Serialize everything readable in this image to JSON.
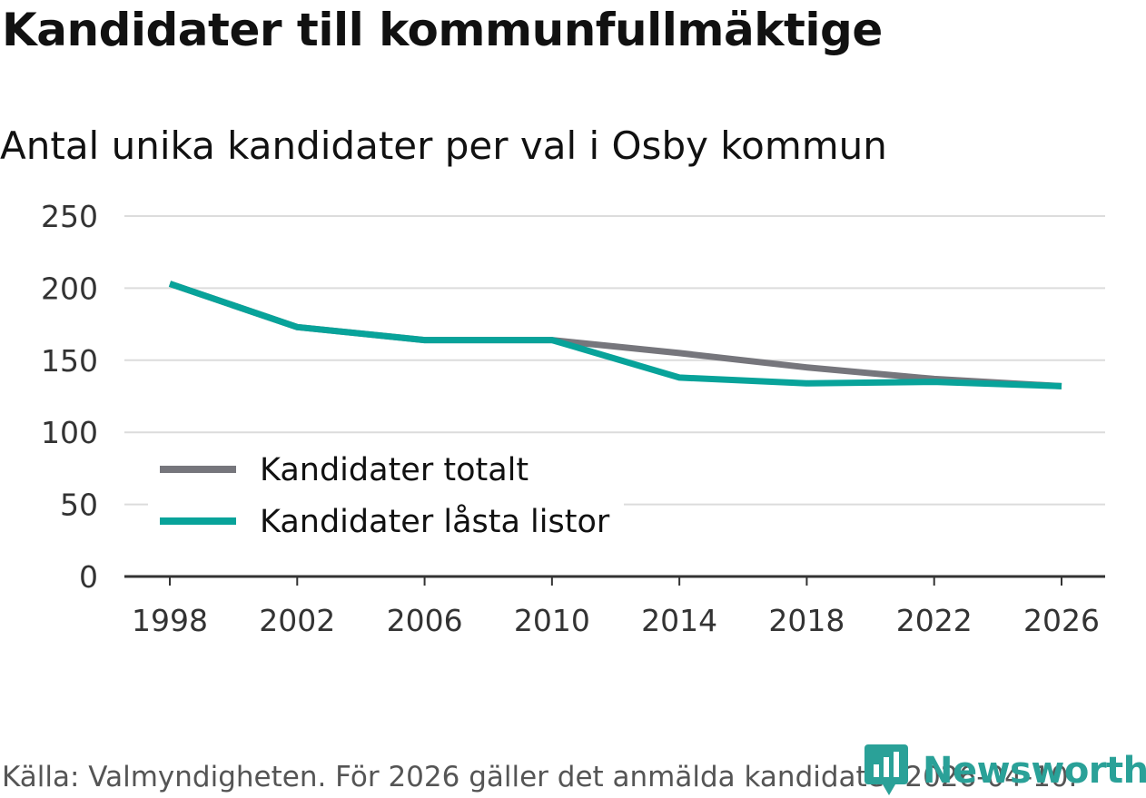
{
  "title": "Kandidater till kommunfullmäktige",
  "subtitle": "Antal unika kandidater per val i Osby kommun",
  "source": "Källa: Valmyndigheten. För 2026 gäller det anmälda kandidater 2026-04-10.",
  "brand": {
    "name": "Newsworthy",
    "icon": "bar-chart-logo-icon",
    "color": "#2aa198"
  },
  "chart_data": {
    "type": "line",
    "x": [
      1998,
      2002,
      2006,
      2010,
      2014,
      2018,
      2022,
      2026
    ],
    "ylim": [
      0,
      250
    ],
    "yticks": [
      0,
      50,
      100,
      150,
      200,
      250
    ],
    "grid": true,
    "legend_position": "bottom-left",
    "series": [
      {
        "name": "Kandidater totalt",
        "color": "#76767c",
        "values": [
          203,
          173,
          164,
          164,
          155,
          145,
          137,
          132
        ]
      },
      {
        "name": "Kandidater låsta listor",
        "color": "#08a39a",
        "values": [
          203,
          173,
          164,
          164,
          138,
          134,
          135,
          132
        ]
      }
    ],
    "xlabel": "",
    "ylabel": ""
  }
}
